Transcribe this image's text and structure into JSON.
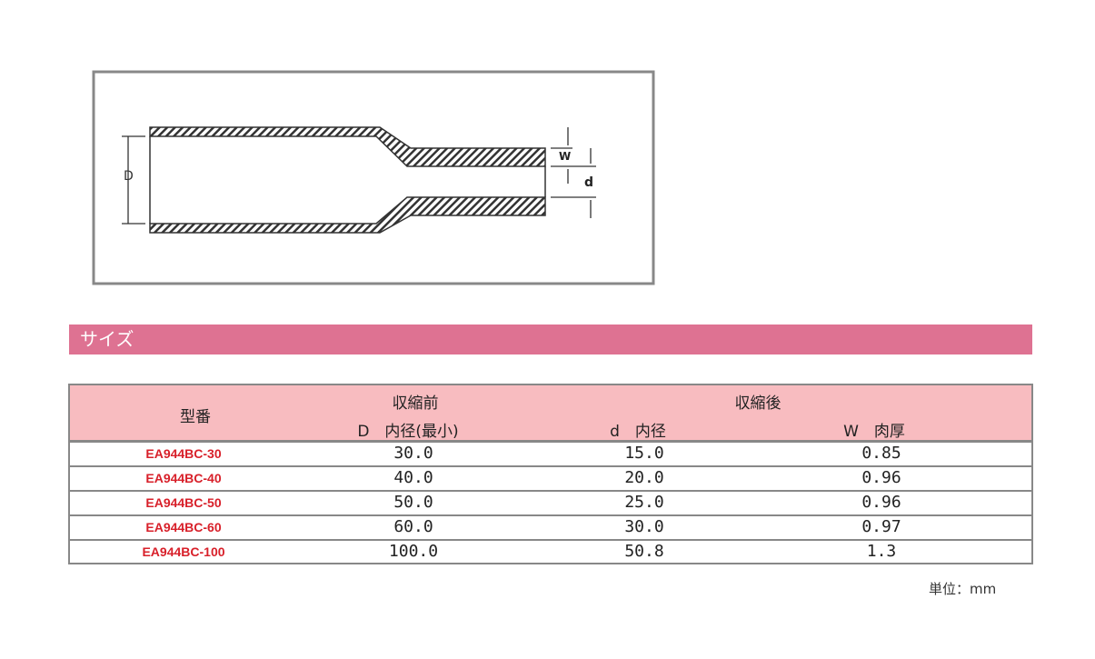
{
  "diagram": {
    "labels": {
      "outer": "D",
      "wall": "W",
      "inner": "d"
    }
  },
  "section": {
    "title": "サイズ"
  },
  "table": {
    "headers": {
      "model": "型番",
      "before": "収縮前",
      "after": "収縮後",
      "D": "D　内径(最小)",
      "d": "d　内径",
      "W": "W　肉厚"
    },
    "rows": [
      {
        "model": "EA944BC-30",
        "D": "30.0",
        "d": "15.0",
        "W": "0.85"
      },
      {
        "model": "EA944BC-40",
        "D": "40.0",
        "d": "20.0",
        "W": "0.96"
      },
      {
        "model": "EA944BC-50",
        "D": "50.0",
        "d": "25.0",
        "W": "0.96"
      },
      {
        "model": "EA944BC-60",
        "D": "60.0",
        "d": "30.0",
        "W": "0.97"
      },
      {
        "model": "EA944BC-100",
        "D": "100.0",
        "d": "50.8",
        "W": "1.3"
      }
    ]
  },
  "unit": "単位：mm",
  "colors": {
    "section_bar": "#de7292",
    "header_bg": "#f8bcc0",
    "model_text": "#d8202a"
  }
}
